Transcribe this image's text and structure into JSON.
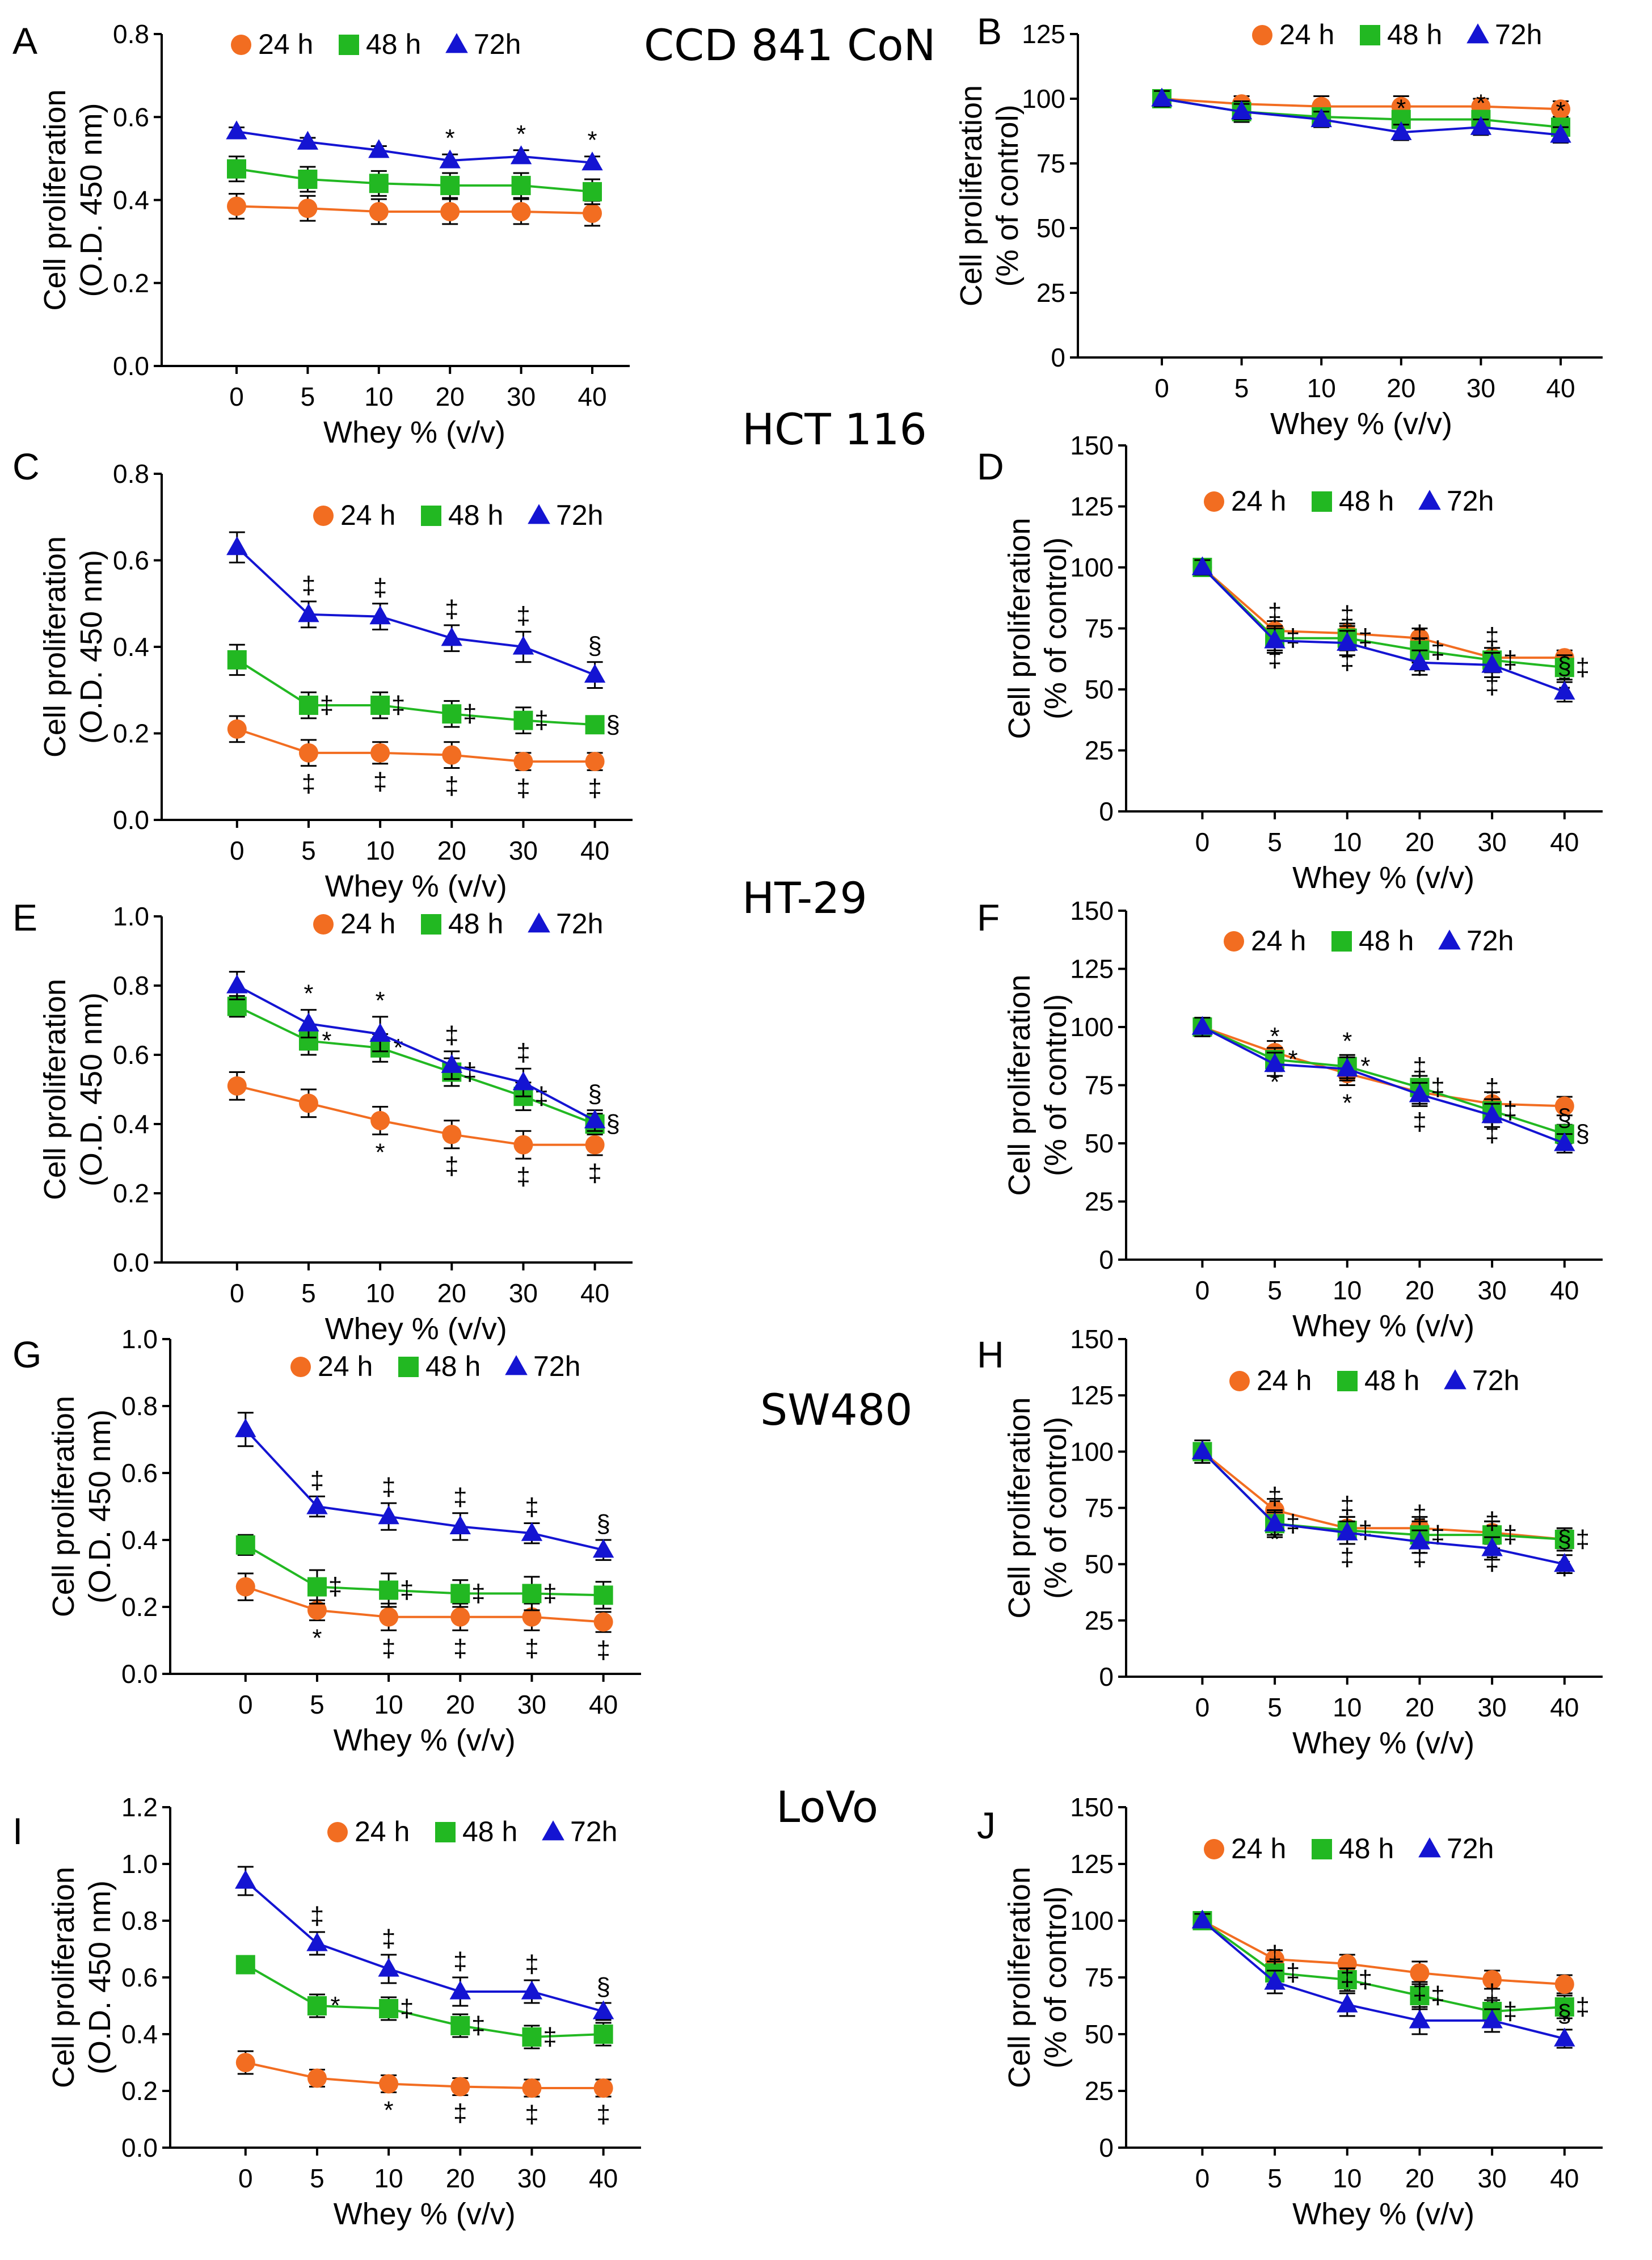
{
  "colors": {
    "h24": "#F26D21",
    "h48": "#22B822",
    "h72": "#1414D2",
    "axis": "#000000"
  },
  "cell_lines": [
    {
      "label": "CCD 841 CoN",
      "panels": [
        "A",
        "B"
      ]
    },
    {
      "label": "HCT 116",
      "panels": [
        "C",
        "D"
      ]
    },
    {
      "label": "HT-29",
      "panels": [
        "E",
        "F"
      ]
    },
    {
      "label": "SW480",
      "panels": [
        "G",
        "H"
      ]
    },
    {
      "label": "LoVo",
      "panels": [
        "I",
        "J"
      ]
    }
  ],
  "chart_data": [
    {
      "id": "A",
      "type": "line",
      "title": "",
      "xlabel": "Whey % (v/v)",
      "ylabel": [
        "Cell proliferation",
        "(O.D. 450 nm)"
      ],
      "categories": [
        "0",
        "5",
        "10",
        "20",
        "30",
        "40"
      ],
      "ylim": [
        0,
        0.8
      ],
      "yticks": [
        "0.0",
        "0.2",
        "0.4",
        "0.6",
        "0.8"
      ],
      "legend_labels": [
        "24 h",
        "48 h",
        "72h"
      ],
      "series": [
        {
          "name": "24 h",
          "values": [
            0.385,
            0.38,
            0.372,
            0.372,
            0.372,
            0.368
          ],
          "errors": [
            0.03,
            0.03,
            0.03,
            0.03,
            0.03,
            0.03
          ],
          "marks": [
            "",
            "",
            "",
            "",
            "",
            ""
          ]
        },
        {
          "name": "48 h",
          "values": [
            0.475,
            0.45,
            0.44,
            0.435,
            0.435,
            0.42
          ],
          "errors": [
            0.03,
            0.03,
            0.03,
            0.03,
            0.03,
            0.03
          ],
          "marks": [
            "",
            "",
            "",
            "",
            "",
            ""
          ]
        },
        {
          "name": "72h",
          "values": [
            0.565,
            0.54,
            0.52,
            0.495,
            0.505,
            0.49
          ],
          "errors": [
            0.01,
            0.01,
            0.01,
            0.015,
            0.015,
            0.015
          ],
          "marks": [
            "",
            "",
            "",
            "*",
            "*",
            "*"
          ]
        }
      ]
    },
    {
      "id": "B",
      "type": "line",
      "title": "",
      "xlabel": "Whey % (v/v)",
      "ylabel": [
        "Cell proliferation",
        "(% of control)"
      ],
      "categories": [
        "0",
        "5",
        "10",
        "20",
        "30",
        "40"
      ],
      "ylim": [
        0,
        125
      ],
      "yticks": [
        "0",
        "25",
        "50",
        "75",
        "100",
        "125"
      ],
      "legend_labels": [
        "24 h",
        "48 h",
        "72h"
      ],
      "series": [
        {
          "name": "24 h",
          "values": [
            100,
            98,
            97,
            97,
            97,
            96
          ],
          "errors": [
            3,
            3,
            4,
            4,
            3,
            3
          ],
          "marks": [
            "",
            "",
            "",
            "",
            "",
            ""
          ]
        },
        {
          "name": "48 h",
          "values": [
            100,
            95,
            93,
            92,
            92,
            89
          ],
          "errors": [
            3,
            4,
            3,
            3,
            3,
            3
          ],
          "marks": [
            "",
            "",
            "",
            "",
            "",
            ""
          ]
        },
        {
          "name": "72h",
          "values": [
            100,
            95,
            92,
            87,
            89,
            86
          ],
          "errors": [
            3,
            3,
            3,
            3,
            3,
            3
          ],
          "marks": [
            "",
            "",
            "",
            "*",
            "*",
            "*"
          ]
        }
      ]
    },
    {
      "id": "C",
      "type": "line",
      "title": "",
      "xlabel": "Whey % (v/v)",
      "ylabel": [
        "Cell proliferation",
        "(O.D. 450 nm)"
      ],
      "categories": [
        "0",
        "5",
        "10",
        "20",
        "30",
        "40"
      ],
      "ylim": [
        0,
        0.8
      ],
      "yticks": [
        "0.0",
        "0.2",
        "0.4",
        "0.6",
        "0.8"
      ],
      "legend_labels": [
        "24 h",
        "48 h",
        "72h"
      ],
      "series": [
        {
          "name": "24 h",
          "values": [
            0.21,
            0.155,
            0.155,
            0.15,
            0.135,
            0.135
          ],
          "errors": [
            0.03,
            0.03,
            0.025,
            0.03,
            0.02,
            0.02
          ],
          "marks": [
            "",
            "‡",
            "‡",
            "‡",
            "‡",
            "‡"
          ]
        },
        {
          "name": "48 h",
          "values": [
            0.37,
            0.265,
            0.265,
            0.245,
            0.23,
            0.22
          ],
          "errors": [
            0.035,
            0.03,
            0.03,
            0.03,
            0.03,
            0.02
          ],
          "marks": [
            "",
            "‡",
            "‡",
            "‡",
            "‡",
            "§"
          ]
        },
        {
          "name": "72h",
          "values": [
            0.63,
            0.475,
            0.47,
            0.42,
            0.4,
            0.335
          ],
          "errors": [
            0.035,
            0.03,
            0.03,
            0.03,
            0.035,
            0.03
          ],
          "marks": [
            "",
            "‡",
            "‡",
            "‡",
            "‡",
            "§"
          ]
        }
      ]
    },
    {
      "id": "D",
      "type": "line",
      "title": "",
      "xlabel": "Whey % (v/v)",
      "ylabel": [
        "Cell proliferation",
        "(% of control)"
      ],
      "categories": [
        "0",
        "5",
        "10",
        "20",
        "30",
        "40"
      ],
      "ylim": [
        0,
        150
      ],
      "yticks": [
        "0",
        "25",
        "50",
        "75",
        "100",
        "125",
        "150"
      ],
      "legend_labels": [
        "24 h",
        "48 h",
        "72h"
      ],
      "series": [
        {
          "name": "24 h",
          "values": [
            100,
            74,
            73,
            71,
            63,
            63
          ],
          "errors": [
            3,
            4,
            4,
            4,
            4,
            3
          ],
          "marks": [
            "",
            "‡",
            "‡",
            "‡",
            "‡",
            "‡"
          ]
        },
        {
          "name": "48 h",
          "values": [
            100,
            71,
            71,
            66,
            62,
            59
          ],
          "errors": [
            3,
            5,
            5,
            5,
            5,
            5
          ],
          "marks": [
            "",
            "‡",
            "‡",
            "‡",
            "‡",
            "‡"
          ]
        },
        {
          "name": "72h",
          "values": [
            100,
            70,
            69,
            61,
            60,
            49
          ],
          "errors": [
            3,
            5,
            5,
            5,
            5,
            4
          ],
          "marks": [
            "",
            "‡",
            "‡",
            "‡",
            "‡",
            "§"
          ]
        }
      ]
    },
    {
      "id": "E",
      "type": "line",
      "title": "",
      "xlabel": "Whey % (v/v)",
      "ylabel": [
        "Cell proliferation",
        "(O.D. 450 nm)"
      ],
      "categories": [
        "0",
        "5",
        "10",
        "20",
        "30",
        "40"
      ],
      "ylim": [
        0,
        1.0
      ],
      "yticks": [
        "0.0",
        "0.2",
        "0.4",
        "0.6",
        "0.8",
        "1.0"
      ],
      "legend_labels": [
        "24 h",
        "48 h",
        "72h"
      ],
      "series": [
        {
          "name": "24 h",
          "values": [
            0.51,
            0.46,
            0.41,
            0.37,
            0.34,
            0.34
          ],
          "errors": [
            0.04,
            0.04,
            0.04,
            0.04,
            0.04,
            0.03
          ],
          "marks": [
            "",
            "",
            "*",
            "‡",
            "‡",
            "‡"
          ]
        },
        {
          "name": "48 h",
          "values": [
            0.74,
            0.64,
            0.62,
            0.55,
            0.48,
            0.4
          ],
          "errors": [
            0.03,
            0.04,
            0.04,
            0.04,
            0.04,
            0.03
          ],
          "marks": [
            "",
            "*",
            "*",
            "‡",
            "‡",
            "§"
          ]
        },
        {
          "name": "72h",
          "values": [
            0.8,
            0.69,
            0.66,
            0.57,
            0.52,
            0.41
          ],
          "errors": [
            0.04,
            0.04,
            0.05,
            0.04,
            0.04,
            0.03
          ],
          "marks": [
            "",
            "*",
            "*",
            "‡",
            "‡",
            "§"
          ]
        }
      ]
    },
    {
      "id": "F",
      "type": "line",
      "title": "",
      "xlabel": "Whey % (v/v)",
      "ylabel": [
        "Cell proliferation",
        "(% of control)"
      ],
      "categories": [
        "0",
        "5",
        "10",
        "20",
        "30",
        "40"
      ],
      "ylim": [
        0,
        150
      ],
      "yticks": [
        "0",
        "25",
        "50",
        "75",
        "100",
        "125",
        "150"
      ],
      "legend_labels": [
        "24 h",
        "48 h",
        "72h"
      ],
      "series": [
        {
          "name": "24 h",
          "values": [
            100,
            89,
            80,
            72,
            67,
            66
          ],
          "errors": [
            4,
            5,
            5,
            5,
            5,
            4
          ],
          "marks": [
            "",
            "*",
            "*",
            "‡",
            "‡",
            "‡"
          ]
        },
        {
          "name": "48 h",
          "values": [
            100,
            86,
            83,
            74,
            64,
            54
          ],
          "errors": [
            4,
            5,
            5,
            5,
            5,
            4
          ],
          "marks": [
            "",
            "*",
            "*",
            "‡",
            "‡",
            "§"
          ]
        },
        {
          "name": "72h",
          "values": [
            100,
            84,
            82,
            71,
            62,
            50
          ],
          "errors": [
            4,
            5,
            5,
            5,
            5,
            4
          ],
          "marks": [
            "",
            "*",
            "*",
            "‡",
            "‡",
            "§"
          ]
        }
      ]
    },
    {
      "id": "G",
      "type": "line",
      "title": "",
      "xlabel": "Whey % (v/v)",
      "ylabel": [
        "Cell proliferation",
        "(O.D. 450 nm)"
      ],
      "categories": [
        "0",
        "5",
        "10",
        "20",
        "30",
        "40"
      ],
      "ylim": [
        0,
        1.0
      ],
      "yticks": [
        "0.0",
        "0.2",
        "0.4",
        "0.6",
        "0.8",
        "1.0"
      ],
      "legend_labels": [
        "24 h",
        "48 h",
        "72h"
      ],
      "series": [
        {
          "name": "24 h",
          "values": [
            0.26,
            0.19,
            0.17,
            0.17,
            0.17,
            0.155
          ],
          "errors": [
            0.04,
            0.03,
            0.04,
            0.04,
            0.04,
            0.03
          ],
          "marks": [
            "",
            "*",
            "‡",
            "‡",
            "‡",
            "‡"
          ]
        },
        {
          "name": "48 h",
          "values": [
            0.385,
            0.26,
            0.25,
            0.24,
            0.24,
            0.235
          ],
          "errors": [
            0.03,
            0.05,
            0.05,
            0.04,
            0.05,
            0.04
          ],
          "marks": [
            "",
            "‡",
            "‡",
            "‡",
            "‡",
            ""
          ]
        },
        {
          "name": "72h",
          "values": [
            0.73,
            0.5,
            0.47,
            0.44,
            0.42,
            0.37
          ],
          "errors": [
            0.05,
            0.03,
            0.04,
            0.04,
            0.03,
            0.03
          ],
          "marks": [
            "",
            "‡",
            "‡",
            "‡",
            "‡",
            "§"
          ]
        }
      ]
    },
    {
      "id": "H",
      "type": "line",
      "title": "",
      "xlabel": "Whey % (v/v)",
      "ylabel": [
        "Cell proliferation",
        "(% of control)"
      ],
      "categories": [
        "0",
        "5",
        "10",
        "20",
        "30",
        "40"
      ],
      "ylim": [
        0,
        150
      ],
      "yticks": [
        "0",
        "25",
        "50",
        "75",
        "100",
        "125",
        "150"
      ],
      "legend_labels": [
        "24 h",
        "48 h",
        "72h"
      ],
      "series": [
        {
          "name": "24 h",
          "values": [
            100,
            74,
            66,
            66,
            64,
            61
          ],
          "errors": [
            5,
            5,
            5,
            5,
            5,
            4
          ],
          "marks": [
            "",
            "*",
            "‡",
            "‡",
            "‡",
            "‡"
          ]
        },
        {
          "name": "48 h",
          "values": [
            100,
            68,
            65,
            63,
            63,
            61
          ],
          "errors": [
            5,
            6,
            6,
            6,
            6,
            5
          ],
          "marks": [
            "",
            "‡",
            "‡",
            "‡",
            "‡",
            "‡"
          ]
        },
        {
          "name": "72h",
          "values": [
            100,
            68,
            64,
            60,
            57,
            50
          ],
          "errors": [
            5,
            5,
            5,
            5,
            5,
            4
          ],
          "marks": [
            "",
            "‡",
            "‡",
            "‡",
            "‡",
            "§"
          ]
        }
      ]
    },
    {
      "id": "I",
      "type": "line",
      "title": "",
      "xlabel": "Whey % (v/v)",
      "ylabel": [
        "Cell proliferation",
        "(O.D. 450 nm)"
      ],
      "categories": [
        "0",
        "5",
        "10",
        "20",
        "30",
        "40"
      ],
      "ylim": [
        0,
        1.2
      ],
      "yticks": [
        "0.0",
        "0.2",
        "0.4",
        "0.6",
        "0.8",
        "1.0",
        "1.2"
      ],
      "legend_labels": [
        "24 h",
        "48 h",
        "72h"
      ],
      "series": [
        {
          "name": "24 h",
          "values": [
            0.3,
            0.245,
            0.225,
            0.215,
            0.21,
            0.21
          ],
          "errors": [
            0.04,
            0.03,
            0.03,
            0.03,
            0.03,
            0.03
          ],
          "marks": [
            "",
            "",
            "*",
            "‡",
            "‡",
            "‡"
          ]
        },
        {
          "name": "48 h",
          "values": [
            0.645,
            0.5,
            0.49,
            0.43,
            0.39,
            0.4
          ],
          "errors": [
            0.03,
            0.04,
            0.04,
            0.04,
            0.04,
            0.04
          ],
          "marks": [
            "",
            "*",
            "‡",
            "‡",
            "‡",
            ""
          ]
        },
        {
          "name": "72h",
          "values": [
            0.94,
            0.72,
            0.63,
            0.55,
            0.55,
            0.48
          ],
          "errors": [
            0.05,
            0.04,
            0.05,
            0.05,
            0.04,
            0.03
          ],
          "marks": [
            "",
            "‡",
            "‡",
            "‡",
            "‡",
            "§"
          ]
        }
      ]
    },
    {
      "id": "J",
      "type": "line",
      "title": "",
      "xlabel": "Whey % (v/v)",
      "ylabel": [
        "Cell proliferation",
        "(% of control)"
      ],
      "categories": [
        "0",
        "5",
        "10",
        "20",
        "30",
        "40"
      ],
      "ylim": [
        0,
        150
      ],
      "yticks": [
        "0",
        "25",
        "50",
        "75",
        "100",
        "125",
        "150"
      ],
      "legend_labels": [
        "24 h",
        "48 h",
        "72h"
      ],
      "series": [
        {
          "name": "24 h",
          "values": [
            100,
            83,
            81,
            77,
            74,
            72
          ],
          "errors": [
            3,
            4,
            4,
            5,
            4,
            4
          ],
          "marks": [
            "",
            "",
            "*",
            "‡",
            "‡",
            "‡"
          ]
        },
        {
          "name": "48 h",
          "values": [
            100,
            77,
            74,
            67,
            60,
            62
          ],
          "errors": [
            3,
            5,
            5,
            6,
            5,
            5
          ],
          "marks": [
            "",
            "‡",
            "‡",
            "‡",
            "‡",
            "‡"
          ]
        },
        {
          "name": "72h",
          "values": [
            100,
            73,
            63,
            56,
            56,
            48
          ],
          "errors": [
            3,
            5,
            5,
            6,
            5,
            4
          ],
          "marks": [
            "",
            "‡",
            "‡",
            "‡",
            "‡",
            "§"
          ]
        }
      ]
    }
  ]
}
